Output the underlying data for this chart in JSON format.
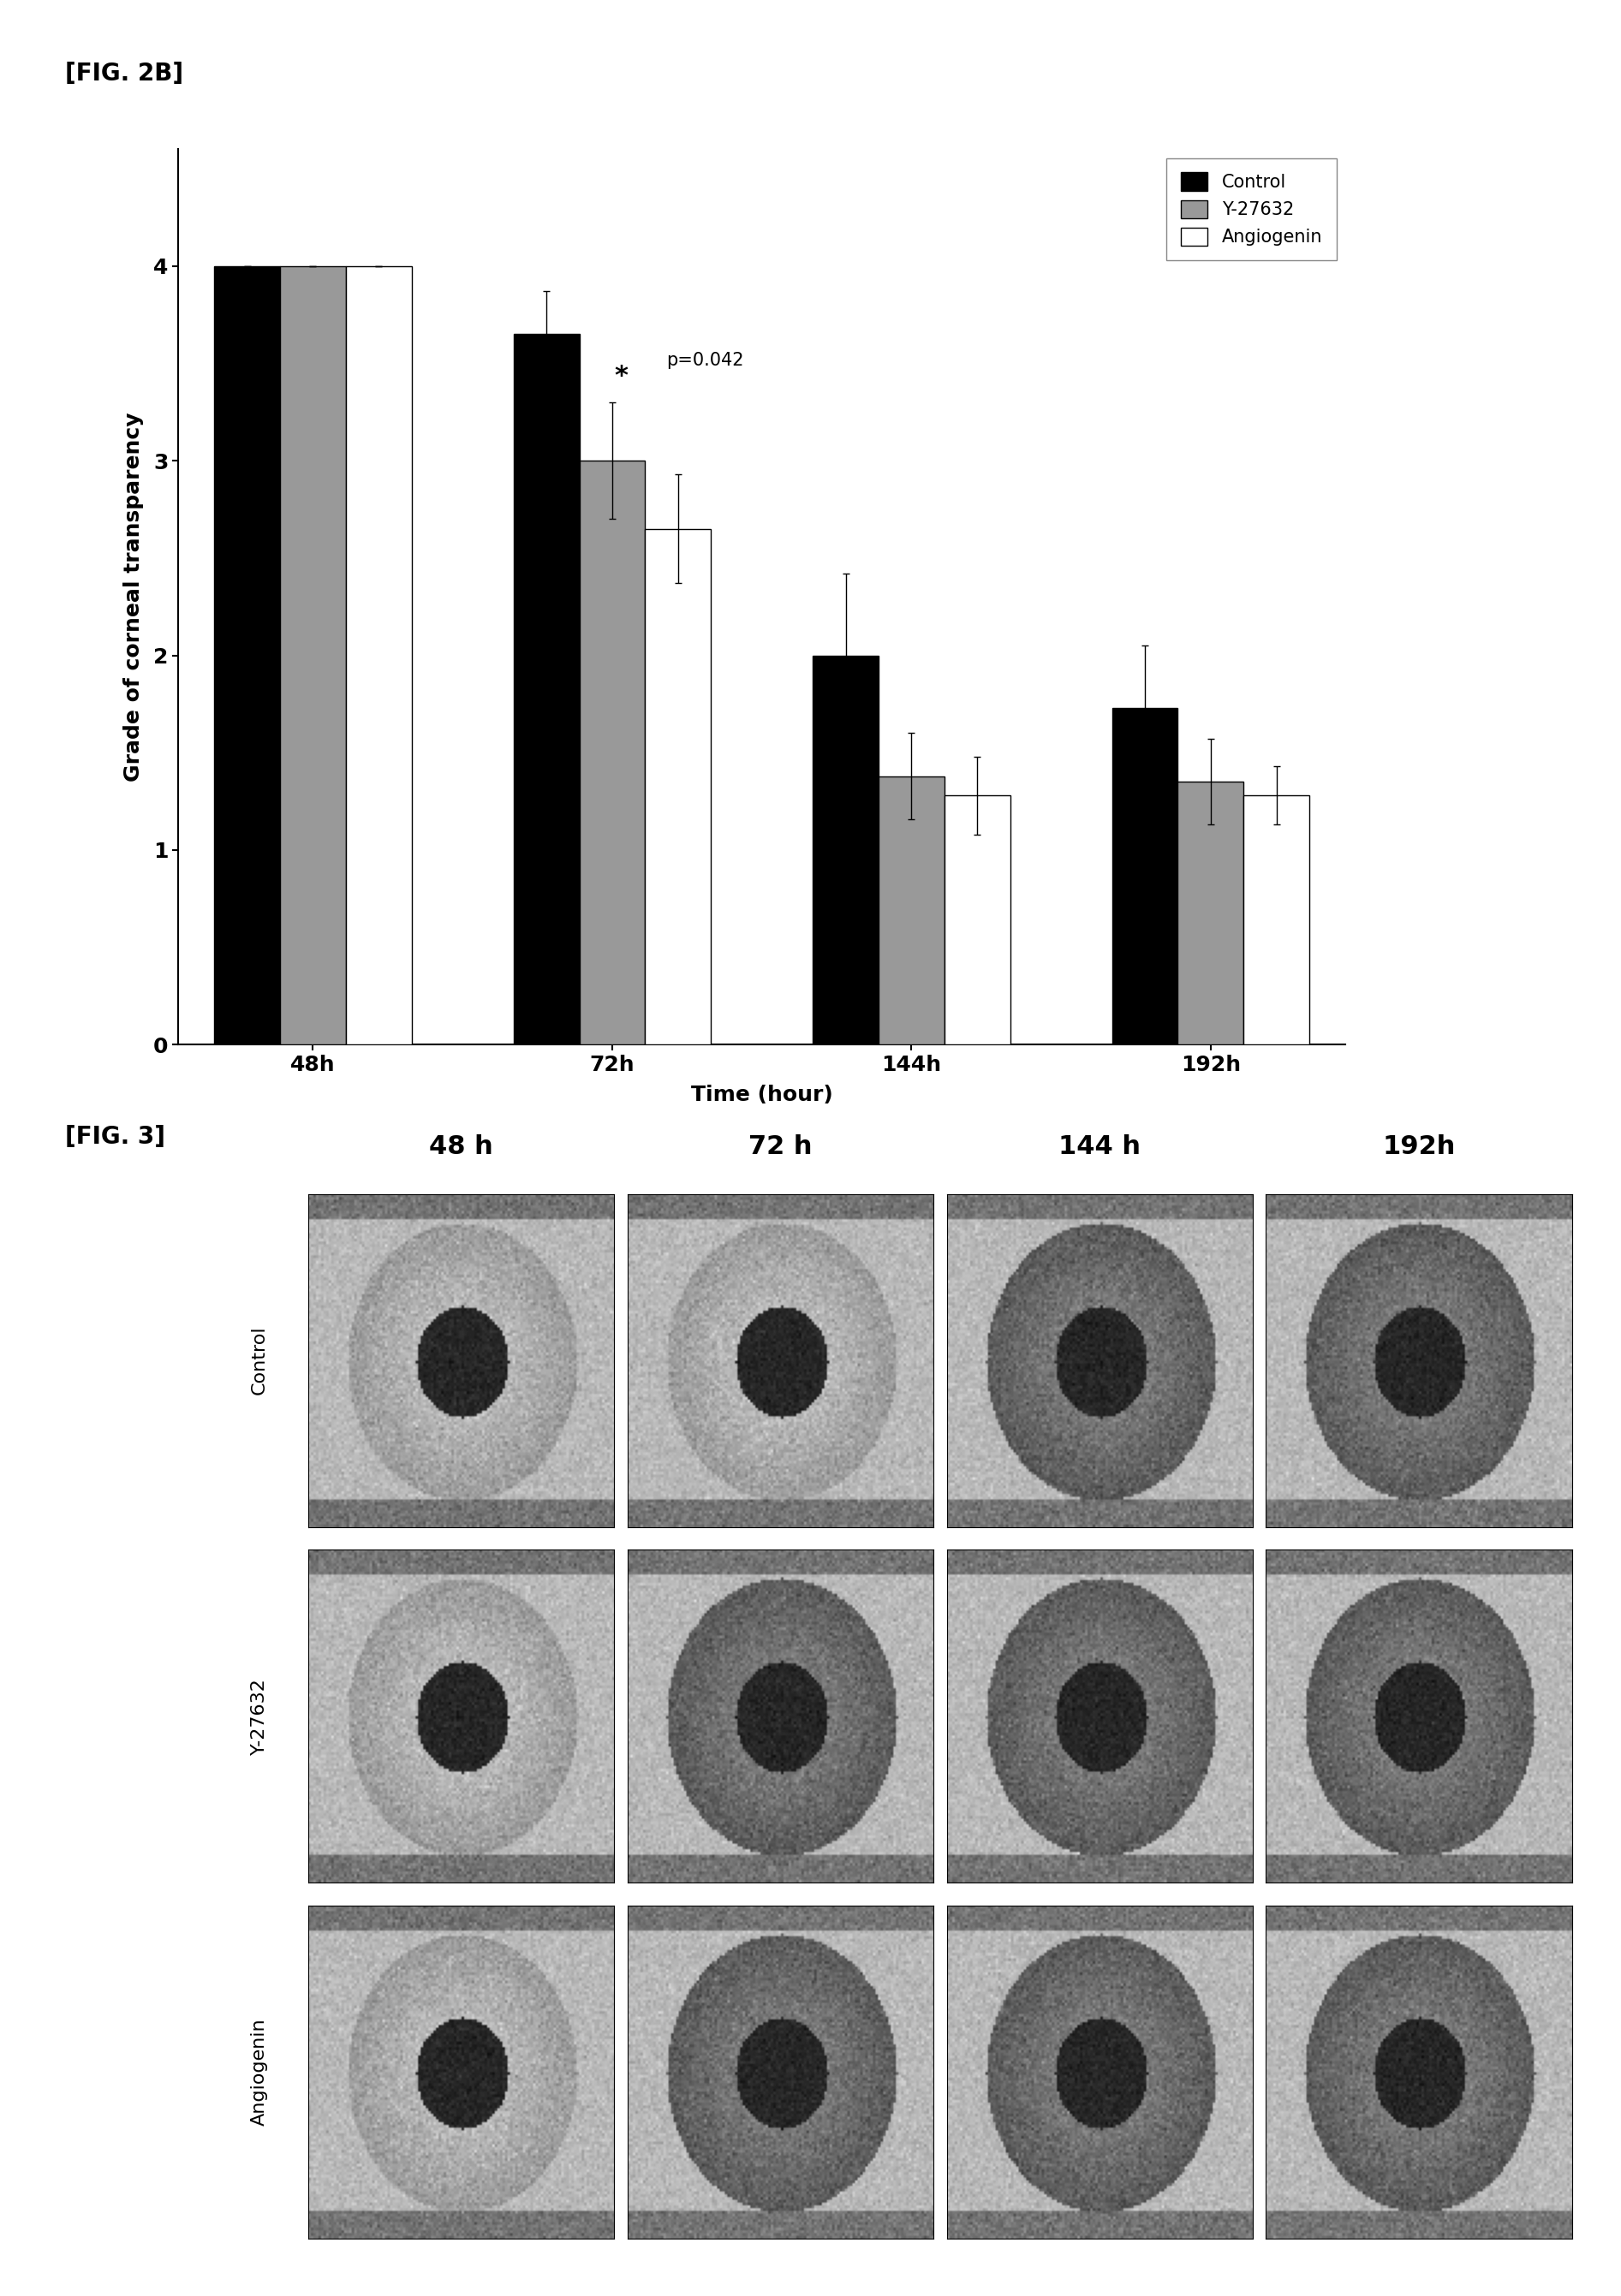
{
  "fig2b_label": "[FIG. 2B]",
  "fig3_label": "[FIG. 3]",
  "bar_groups": [
    "48h",
    "72h",
    "144h",
    "192h"
  ],
  "series": [
    "Control",
    "Y-27632",
    "Angiogenin"
  ],
  "bar_colors": [
    "#000000",
    "#999999",
    "#ffffff"
  ],
  "bar_edgecolors": [
    "#000000",
    "#000000",
    "#000000"
  ],
  "values": [
    [
      4.0,
      4.0,
      4.0
    ],
    [
      3.65,
      3.0,
      2.65
    ],
    [
      2.0,
      1.38,
      1.28
    ],
    [
      1.73,
      1.35,
      1.28
    ]
  ],
  "errors": [
    [
      0.0,
      0.0,
      0.0
    ],
    [
      0.22,
      0.3,
      0.28
    ],
    [
      0.42,
      0.22,
      0.2
    ],
    [
      0.32,
      0.22,
      0.15
    ]
  ],
  "ylabel": "Grade of corneal transparency",
  "xlabel": "Time (hour)",
  "ylim": [
    0,
    4.6
  ],
  "yticks": [
    0,
    1,
    2,
    3,
    4
  ],
  "annotation_text": "p=0.042",
  "annotation_star": "*",
  "bar_width": 0.22,
  "col_headers": [
    "48 h",
    "72 h",
    "144 h",
    "192h"
  ],
  "row_headers": [
    "Control",
    "Y-27632",
    "Angiogenin"
  ],
  "background_color": "#ffffff"
}
